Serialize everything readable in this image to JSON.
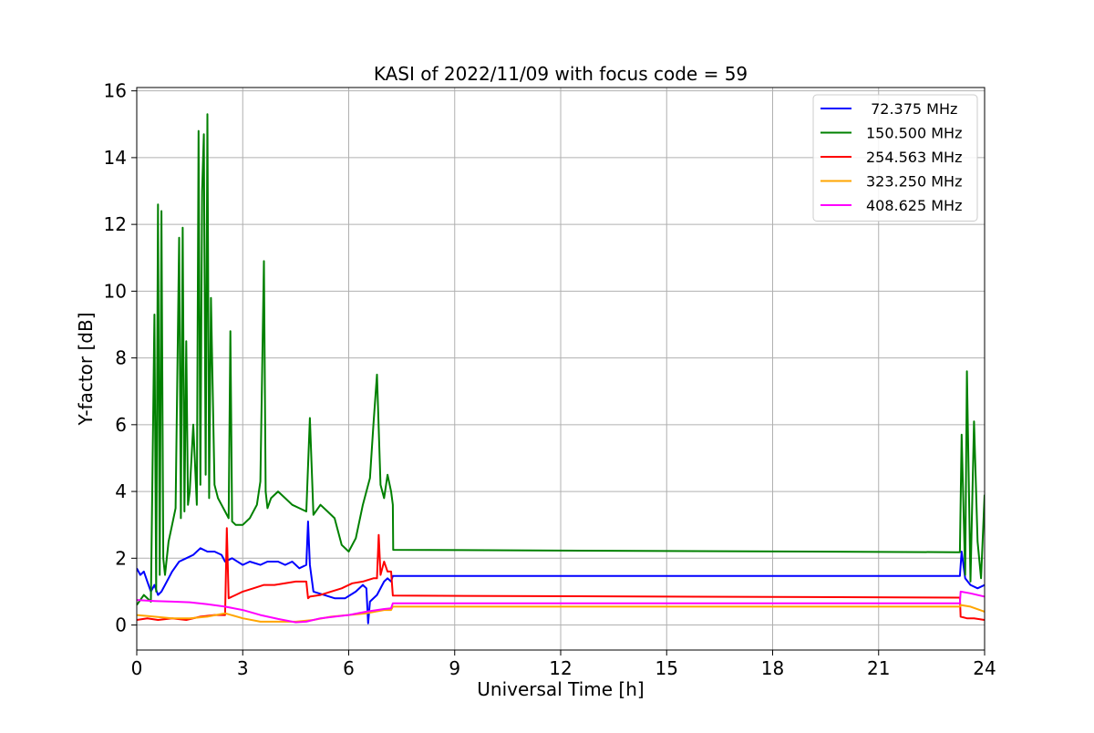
{
  "chart_data": {
    "type": "line",
    "title": "KASI of 2022/11/09 with focus code = 59",
    "xlabel": "Universal Time [h]",
    "ylabel": "Y-factor [dB]",
    "xlim": [
      0,
      24
    ],
    "ylim": [
      -0.75,
      16.1
    ],
    "xticks": [
      0,
      3,
      6,
      9,
      12,
      15,
      18,
      21,
      24
    ],
    "yticks": [
      0,
      2,
      4,
      6,
      8,
      10,
      12,
      14,
      16
    ],
    "grid": true,
    "legend_position": "top-right",
    "series": [
      {
        "name": " 72.375 MHz",
        "color": "#0000ff",
        "x": [
          0,
          0.1,
          0.2,
          0.3,
          0.4,
          0.5,
          0.6,
          0.7,
          0.8,
          0.9,
          1.0,
          1.2,
          1.4,
          1.6,
          1.8,
          2.0,
          2.2,
          2.4,
          2.5,
          2.7,
          3.0,
          3.2,
          3.5,
          3.7,
          4.0,
          4.2,
          4.4,
          4.6,
          4.8,
          4.85,
          4.9,
          5.0,
          5.3,
          5.6,
          5.9,
          6.2,
          6.4,
          6.5,
          6.55,
          6.6,
          6.8,
          7.0,
          7.1,
          7.2,
          7.25,
          7.26,
          23.3,
          23.35,
          23.45,
          23.6,
          23.8,
          24.0
        ],
        "y": [
          1.7,
          1.5,
          1.6,
          1.3,
          1.0,
          1.2,
          0.9,
          1.0,
          1.2,
          1.4,
          1.6,
          1.9,
          2.0,
          2.1,
          2.3,
          2.2,
          2.2,
          2.1,
          1.9,
          2.0,
          1.8,
          1.9,
          1.8,
          1.9,
          1.9,
          1.8,
          1.9,
          1.7,
          1.8,
          3.1,
          1.8,
          1.0,
          0.9,
          0.8,
          0.8,
          1.0,
          1.2,
          1.1,
          0.05,
          0.7,
          0.9,
          1.3,
          1.4,
          1.3,
          1.47,
          1.47,
          1.47,
          2.2,
          1.4,
          1.2,
          1.1,
          1.2
        ]
      },
      {
        "name": "150.500 MHz",
        "color": "#008000",
        "x": [
          0,
          0.2,
          0.4,
          0.5,
          0.55,
          0.6,
          0.65,
          0.7,
          0.75,
          0.8,
          0.9,
          1.0,
          1.1,
          1.2,
          1.25,
          1.3,
          1.35,
          1.4,
          1.45,
          1.5,
          1.6,
          1.7,
          1.75,
          1.8,
          1.85,
          1.9,
          1.95,
          2.0,
          2.05,
          2.1,
          2.2,
          2.3,
          2.4,
          2.5,
          2.6,
          2.65,
          2.7,
          2.8,
          3.0,
          3.2,
          3.4,
          3.5,
          3.6,
          3.65,
          3.7,
          3.8,
          4.0,
          4.2,
          4.4,
          4.6,
          4.8,
          4.9,
          5.0,
          5.2,
          5.4,
          5.6,
          5.8,
          6.0,
          6.2,
          6.4,
          6.6,
          6.7,
          6.8,
          6.9,
          7.0,
          7.1,
          7.2,
          7.25,
          7.26,
          23.2,
          23.3,
          23.35,
          23.45,
          23.5,
          23.6,
          23.7,
          23.8,
          23.9,
          24.0
        ],
        "y": [
          0.6,
          0.9,
          0.7,
          9.3,
          1.0,
          12.6,
          1.5,
          12.4,
          2.0,
          1.5,
          2.5,
          3.0,
          3.5,
          11.6,
          3.2,
          11.9,
          3.4,
          8.5,
          3.6,
          4.0,
          6.0,
          3.6,
          14.8,
          4.2,
          13.0,
          14.7,
          4.5,
          15.3,
          3.8,
          9.8,
          4.2,
          3.8,
          3.6,
          3.4,
          3.2,
          8.8,
          3.1,
          3.0,
          3.0,
          3.2,
          3.6,
          4.3,
          10.9,
          4.0,
          3.5,
          3.8,
          4.0,
          3.8,
          3.6,
          3.5,
          3.4,
          6.2,
          3.3,
          3.6,
          3.4,
          3.2,
          2.4,
          2.2,
          2.6,
          3.6,
          4.4,
          6.0,
          7.5,
          4.2,
          3.8,
          4.5,
          4.0,
          3.6,
          2.25,
          2.18,
          2.18,
          5.7,
          1.5,
          7.6,
          1.3,
          6.1,
          2.5,
          1.4,
          3.9
        ]
      },
      {
        "name": "254.563 MHz",
        "color": "#ff0000",
        "x": [
          0,
          0.3,
          0.6,
          1.0,
          1.4,
          1.8,
          2.2,
          2.5,
          2.55,
          2.6,
          2.8,
          3.0,
          3.3,
          3.6,
          3.9,
          4.2,
          4.5,
          4.8,
          4.85,
          4.9,
          5.2,
          5.5,
          5.8,
          6.1,
          6.4,
          6.7,
          6.8,
          6.85,
          6.9,
          7.0,
          7.1,
          7.2,
          7.25,
          7.26,
          23.3,
          23.32,
          23.5,
          23.7,
          24.0
        ],
        "y": [
          0.15,
          0.2,
          0.15,
          0.2,
          0.15,
          0.25,
          0.3,
          0.3,
          2.9,
          0.8,
          0.9,
          1.0,
          1.1,
          1.2,
          1.2,
          1.25,
          1.3,
          1.3,
          0.8,
          0.85,
          0.9,
          1.0,
          1.1,
          1.25,
          1.3,
          1.4,
          1.4,
          2.7,
          1.5,
          1.9,
          1.6,
          1.6,
          0.88,
          0.88,
          0.82,
          0.25,
          0.2,
          0.2,
          0.15
        ]
      },
      {
        "name": "323.250 MHz",
        "color": "#ffa500",
        "x": [
          0,
          0.5,
          1.0,
          1.5,
          2.0,
          2.5,
          3.0,
          3.5,
          4.0,
          4.5,
          5.0,
          5.5,
          6.0,
          6.5,
          7.0,
          7.2,
          7.25,
          7.26,
          23.3,
          23.32,
          23.6,
          24.0
        ],
        "y": [
          0.3,
          0.25,
          0.2,
          0.2,
          0.25,
          0.35,
          0.2,
          0.1,
          0.1,
          0.1,
          0.15,
          0.25,
          0.3,
          0.35,
          0.45,
          0.45,
          0.55,
          0.55,
          0.55,
          0.6,
          0.55,
          0.4
        ]
      },
      {
        "name": "408.625 MHz",
        "color": "#ff00ff",
        "x": [
          0,
          0.5,
          1.0,
          1.5,
          2.0,
          2.5,
          3.0,
          3.5,
          4.0,
          4.5,
          4.8,
          5.2,
          5.6,
          6.0,
          6.5,
          7.0,
          7.2,
          7.25,
          7.26,
          23.3,
          23.32,
          23.6,
          24.0
        ],
        "y": [
          0.75,
          0.72,
          0.7,
          0.68,
          0.62,
          0.55,
          0.45,
          0.3,
          0.18,
          0.08,
          0.1,
          0.2,
          0.25,
          0.3,
          0.4,
          0.48,
          0.5,
          0.65,
          0.65,
          0.65,
          1.0,
          0.95,
          0.85
        ]
      }
    ]
  }
}
